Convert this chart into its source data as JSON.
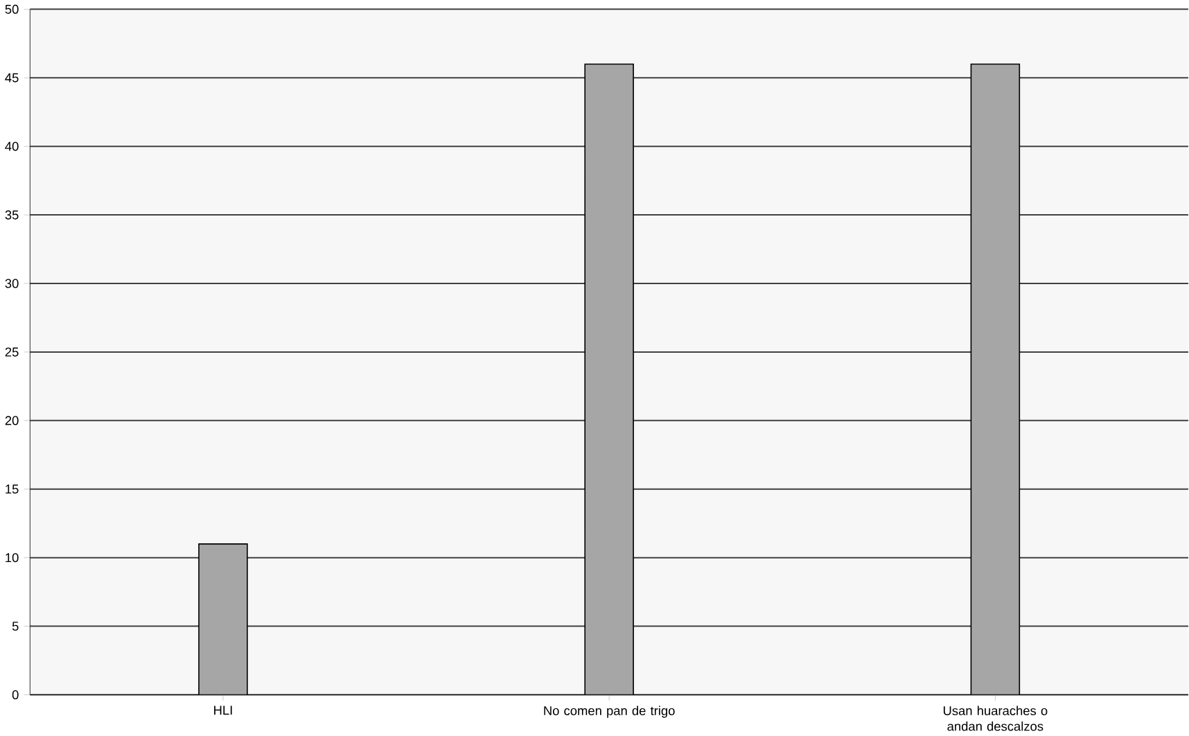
{
  "chart_data": {
    "type": "bar",
    "categories": [
      "HLI",
      "No comen pan de trigo",
      "Usan huaraches o andan descalzos"
    ],
    "values": [
      11,
      46,
      46
    ],
    "color": "#a6a6a6",
    "ylim": [
      0,
      50
    ],
    "yticks": [
      0,
      5,
      10,
      15,
      20,
      25,
      30,
      35,
      40,
      45,
      50
    ],
    "grid": "y"
  }
}
